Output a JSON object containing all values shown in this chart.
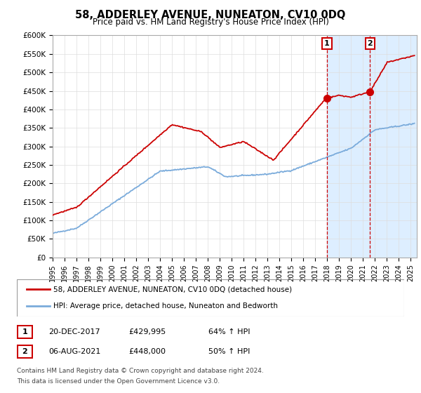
{
  "title": "58, ADDERLEY AVENUE, NUNEATON, CV10 0DQ",
  "subtitle": "Price paid vs. HM Land Registry's House Price Index (HPI)",
  "ylabel_ticks": [
    "£0",
    "£50K",
    "£100K",
    "£150K",
    "£200K",
    "£250K",
    "£300K",
    "£350K",
    "£400K",
    "£450K",
    "£500K",
    "£550K",
    "£600K"
  ],
  "ylim": [
    0,
    600000
  ],
  "xlim_start": 1995.0,
  "xlim_end": 2025.5,
  "red_line_label": "58, ADDERLEY AVENUE, NUNEATON, CV10 0DQ (detached house)",
  "blue_line_label": "HPI: Average price, detached house, Nuneaton and Bedworth",
  "marker1_date": "20-DEC-2017",
  "marker1_price": "£429,995",
  "marker1_hpi": "64% ↑ HPI",
  "marker2_date": "06-AUG-2021",
  "marker2_price": "£448,000",
  "marker2_hpi": "50% ↑ HPI",
  "footnote1": "Contains HM Land Registry data © Crown copyright and database right 2024.",
  "footnote2": "This data is licensed under the Open Government Licence v3.0.",
  "marker1_x": 2017.97,
  "marker2_x": 2021.59,
  "red_color": "#cc0000",
  "blue_color": "#7aabdb",
  "span_color": "#ddeeff",
  "grid_color": "#dddddd"
}
